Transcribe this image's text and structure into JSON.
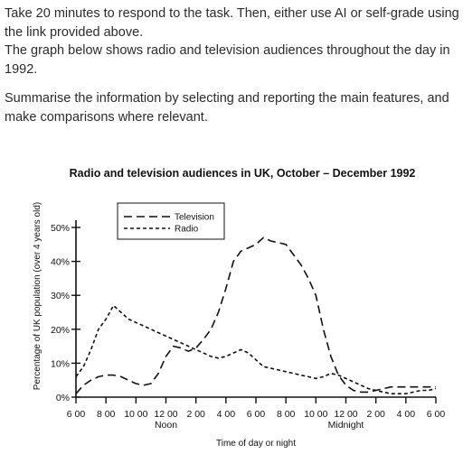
{
  "task": {
    "instructions": "Take 20 minutes to respond to the task. Then, either use AI or self-grade using the link provided above.",
    "prompt_line": "The graph below shows radio and television audiences throughout the day in 1992.",
    "summary": "Summarise the information by selecting and reporting the main features, and make comparisons where relevant."
  },
  "chart_data": {
    "type": "line",
    "title": "Radio and television audiences in UK, October – December 1992",
    "xlabel": "Time of day or night",
    "ylabel": "Percentage of UK population (over 4 years old)",
    "x_ticks": [
      "6 00",
      "8 00",
      "10 00",
      "12 00",
      "2 00",
      "4 00",
      "6 00",
      "8 00",
      "10 00",
      "12 00",
      "2 00",
      "4 00",
      "6 00"
    ],
    "x_sublabels": [
      {
        "at": "12 00",
        "text": "Noon"
      },
      {
        "at": "12 00",
        "index": 9,
        "text": "Midnight"
      }
    ],
    "y_ticks": [
      "0%",
      "10%",
      "20%",
      "30%",
      "40%",
      "50%"
    ],
    "ylim": [
      0,
      50
    ],
    "x_unit": "hours since 6 00 am",
    "legend_position": "top-left",
    "grid": false,
    "series": [
      {
        "name": "Television",
        "style": "long-dash",
        "x": [
          0,
          0.5,
          1,
          1.5,
          2,
          2.5,
          3,
          3.5,
          4,
          4.5,
          5,
          5.5,
          6,
          6.5,
          7,
          7.5,
          8,
          8.5,
          9,
          9.5,
          10,
          10.5,
          11,
          11.5,
          12,
          12.5,
          13,
          13.5,
          14,
          14.5,
          15,
          15.5,
          16,
          16.5,
          17,
          17.5,
          18,
          18.5,
          19,
          19.5,
          20,
          20.5,
          21,
          21.5,
          22,
          22.5,
          23,
          23.5,
          24
        ],
        "values": [
          1,
          3.5,
          5,
          6,
          6.5,
          6.5,
          6,
          5,
          4,
          3.5,
          4,
          7,
          12,
          15,
          14.5,
          13.5,
          14.5,
          17,
          20,
          25,
          32,
          40,
          43,
          44,
          45,
          47,
          46,
          45.5,
          45,
          42,
          39,
          35,
          30,
          20,
          12,
          6.5,
          3.5,
          2,
          1.5,
          1.5,
          2,
          2.5,
          3,
          3,
          3,
          3,
          3,
          3,
          3
        ]
      },
      {
        "name": "Radio",
        "style": "short-dash",
        "x": [
          0,
          0.5,
          1,
          1.5,
          2,
          2.5,
          3,
          3.5,
          4,
          4.5,
          5,
          5.5,
          6,
          6.5,
          7,
          7.5,
          8,
          8.5,
          9,
          9.5,
          10,
          10.5,
          11,
          11.5,
          12,
          12.5,
          13,
          13.5,
          14,
          14.5,
          15,
          15.5,
          16,
          16.5,
          17,
          17.5,
          18,
          18.5,
          19,
          19.5,
          20,
          20.5,
          21,
          21.5,
          22,
          22.5,
          23,
          23.5,
          24
        ],
        "values": [
          6,
          9,
          14,
          20,
          23,
          27,
          25,
          23,
          22,
          21,
          20,
          19,
          18,
          17,
          16,
          15,
          14,
          13,
          12,
          11.5,
          12,
          13,
          14,
          13,
          11,
          9,
          8.5,
          8,
          7.5,
          7,
          6.5,
          6,
          5.5,
          6,
          7,
          6.5,
          5.5,
          4.5,
          3.5,
          2.5,
          2,
          1.5,
          1,
          1,
          1,
          1.5,
          2,
          2,
          2.5
        ]
      }
    ]
  }
}
